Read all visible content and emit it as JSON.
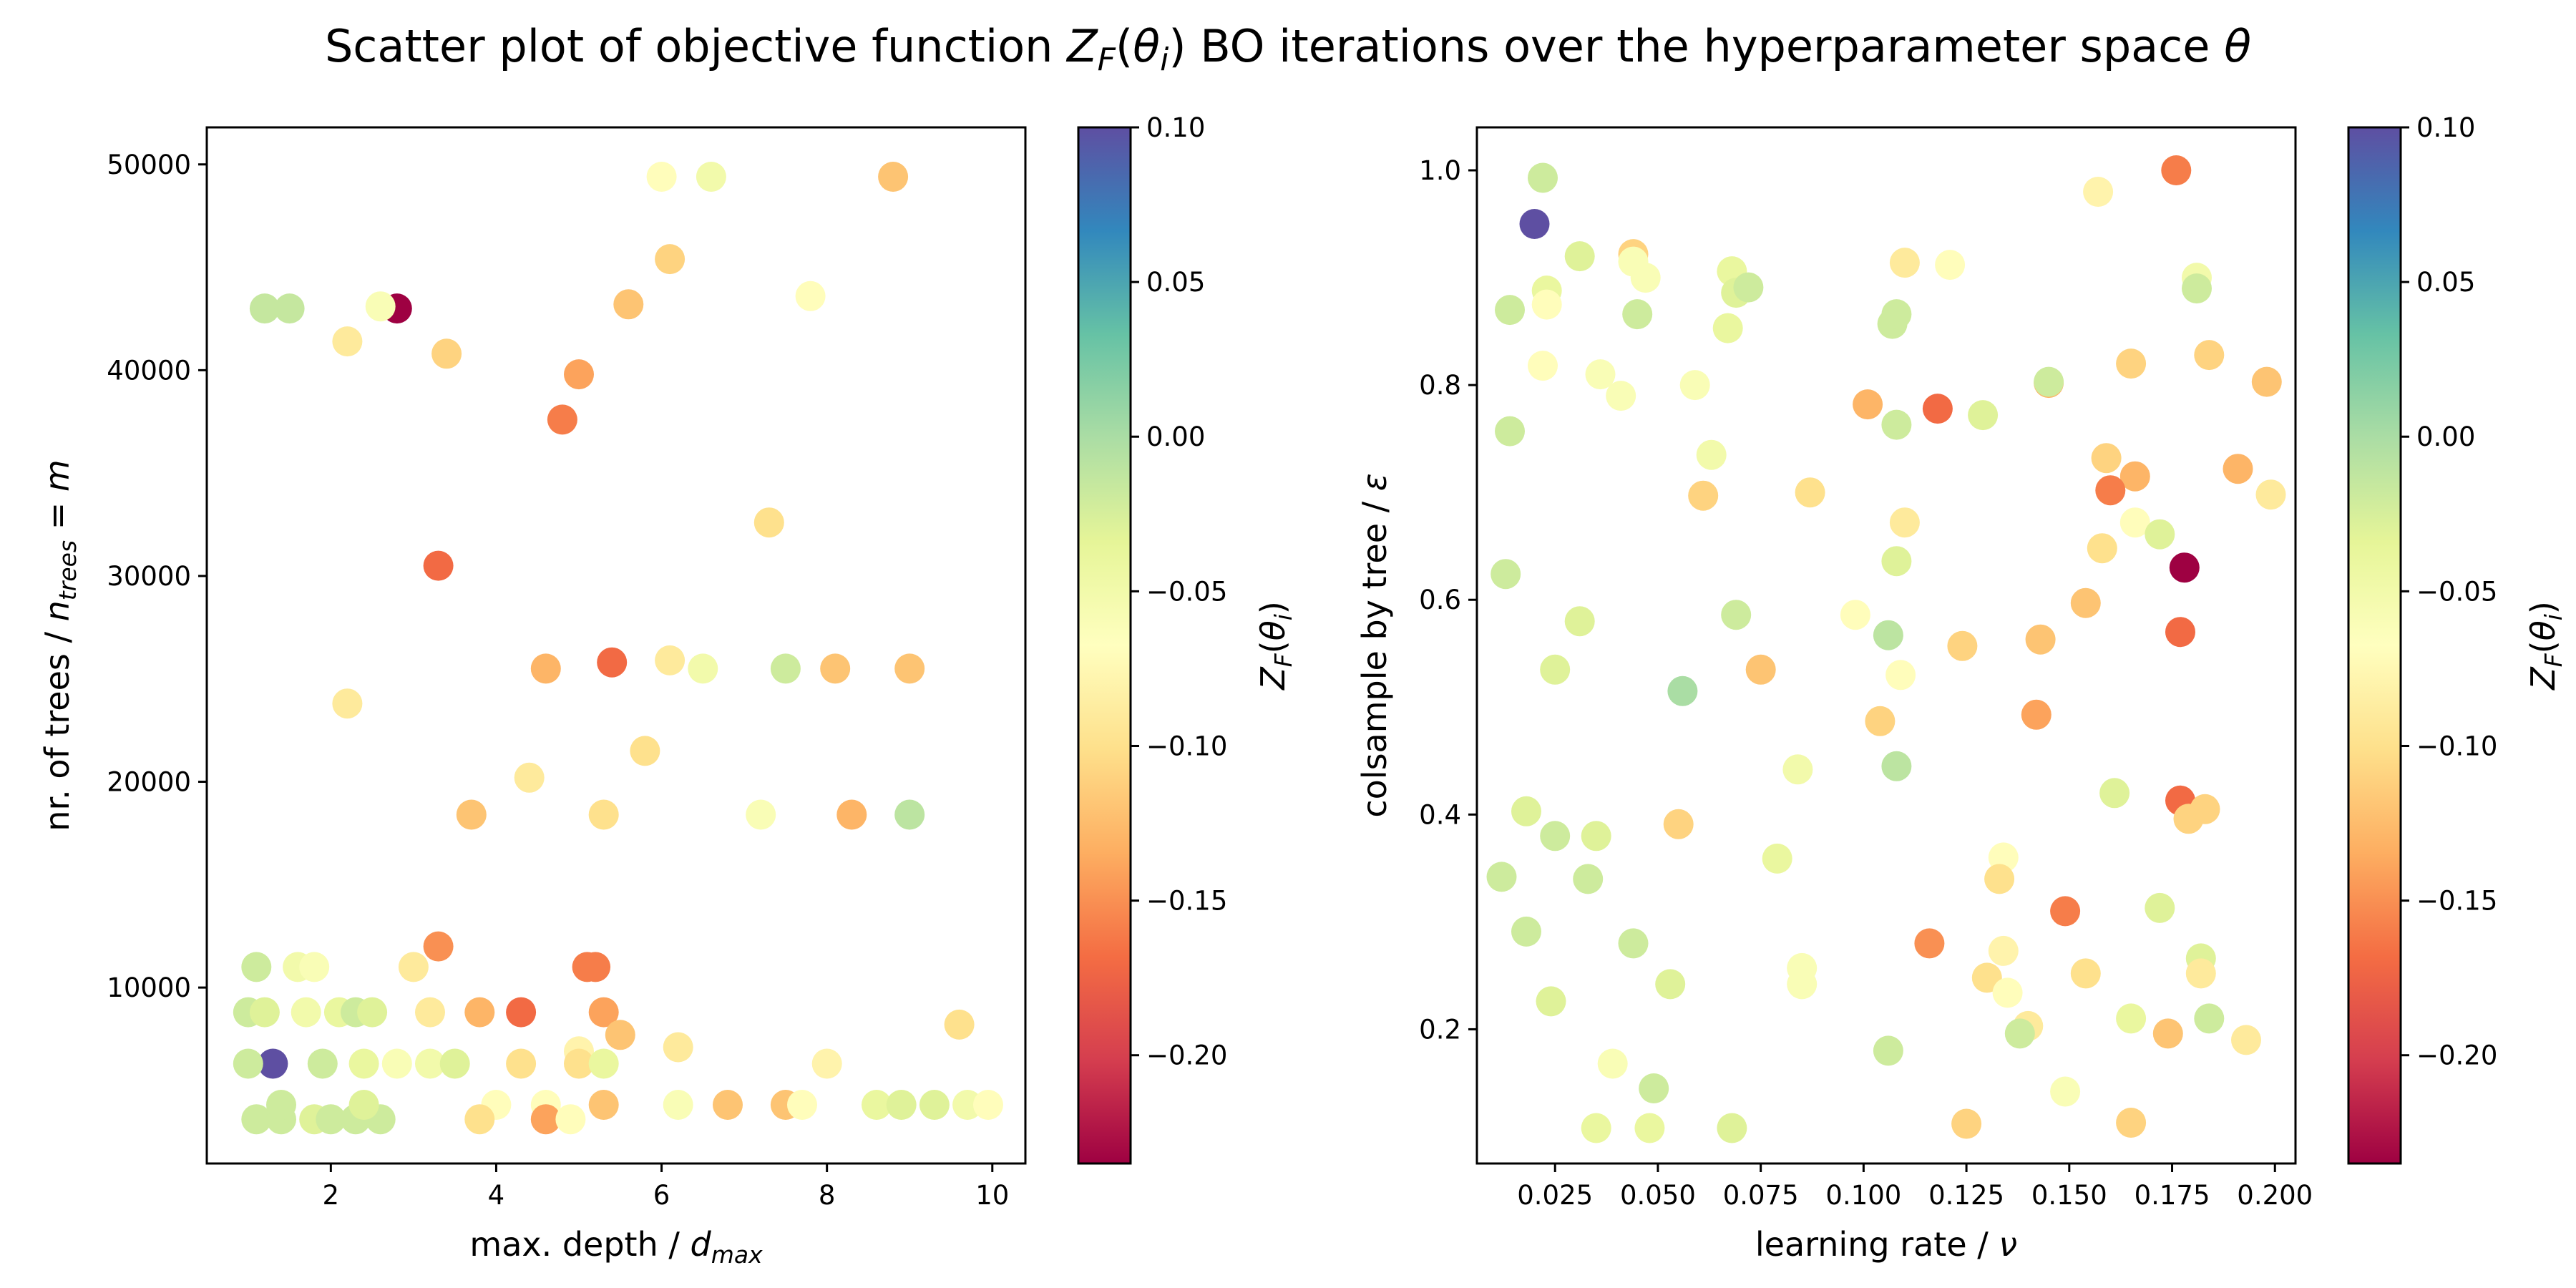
{
  "figure": {
    "title": "Scatter plot of objective function Z_F(θ_i) BO iterations over the hyperparameter space θ"
  },
  "chart_data": [
    {
      "type": "scatter",
      "xlabel": "max. depth / d_max",
      "ylabel": "nr. of trees / n_trees = m",
      "xlim": [
        0.5,
        10.4
      ],
      "ylim": [
        1450,
        51800
      ],
      "xticks": [
        2,
        4,
        6,
        8,
        10
      ],
      "yticks": [
        10000,
        20000,
        30000,
        40000,
        50000
      ],
      "colorbar": {
        "label": "Z_F(θ_i)",
        "colormap": "Spectral",
        "range": [
          -0.235,
          0.1
        ],
        "ticks": [
          "0.10",
          "0.05",
          "0.00",
          "−0.05",
          "−0.10",
          "−0.15",
          "−0.20"
        ],
        "tick_values": [
          0.1,
          0.05,
          0.0,
          -0.05,
          -0.1,
          -0.15,
          -0.2
        ]
      },
      "grid": false,
      "points": [
        {
          "x": 1.3,
          "y": 6300,
          "z": 0.1
        },
        {
          "x": 2.8,
          "y": 43000,
          "z": -0.235
        },
        {
          "x": 1.2,
          "y": 43000,
          "z": -0.015
        },
        {
          "x": 1.5,
          "y": 43000,
          "z": -0.015
        },
        {
          "x": 2.6,
          "y": 43100,
          "z": -0.06
        },
        {
          "x": 2.2,
          "y": 41400,
          "z": -0.09
        },
        {
          "x": 3.4,
          "y": 40800,
          "z": -0.11
        },
        {
          "x": 5.0,
          "y": 39800,
          "z": -0.14
        },
        {
          "x": 4.8,
          "y": 37600,
          "z": -0.16
        },
        {
          "x": 6.0,
          "y": 49400,
          "z": -0.07
        },
        {
          "x": 6.6,
          "y": 49400,
          "z": -0.05
        },
        {
          "x": 8.8,
          "y": 49400,
          "z": -0.12
        },
        {
          "x": 6.1,
          "y": 45400,
          "z": -0.11
        },
        {
          "x": 5.6,
          "y": 43200,
          "z": -0.12
        },
        {
          "x": 7.8,
          "y": 43600,
          "z": -0.07
        },
        {
          "x": 3.3,
          "y": 30500,
          "z": -0.17
        },
        {
          "x": 7.3,
          "y": 32600,
          "z": -0.1
        },
        {
          "x": 2.2,
          "y": 23800,
          "z": -0.09
        },
        {
          "x": 4.6,
          "y": 25500,
          "z": -0.13
        },
        {
          "x": 5.4,
          "y": 25800,
          "z": -0.17
        },
        {
          "x": 6.1,
          "y": 25900,
          "z": -0.09
        },
        {
          "x": 6.5,
          "y": 25500,
          "z": -0.05
        },
        {
          "x": 7.5,
          "y": 25500,
          "z": -0.02
        },
        {
          "x": 8.1,
          "y": 25500,
          "z": -0.12
        },
        {
          "x": 9.0,
          "y": 25500,
          "z": -0.12
        },
        {
          "x": 5.8,
          "y": 21500,
          "z": -0.1
        },
        {
          "x": 4.4,
          "y": 20200,
          "z": -0.09
        },
        {
          "x": 3.7,
          "y": 18400,
          "z": -0.12
        },
        {
          "x": 5.3,
          "y": 18400,
          "z": -0.1
        },
        {
          "x": 7.2,
          "y": 18400,
          "z": -0.06
        },
        {
          "x": 8.3,
          "y": 18400,
          "z": -0.13
        },
        {
          "x": 9.0,
          "y": 18400,
          "z": -0.01
        },
        {
          "x": 3.3,
          "y": 12000,
          "z": -0.15
        },
        {
          "x": 1.1,
          "y": 11000,
          "z": -0.02
        },
        {
          "x": 1.6,
          "y": 11000,
          "z": -0.05
        },
        {
          "x": 1.8,
          "y": 11000,
          "z": -0.06
        },
        {
          "x": 3.0,
          "y": 11000,
          "z": -0.09
        },
        {
          "x": 5.1,
          "y": 11000,
          "z": -0.16
        },
        {
          "x": 5.2,
          "y": 11000,
          "z": -0.16
        },
        {
          "x": 1.0,
          "y": 8800,
          "z": -0.02
        },
        {
          "x": 1.2,
          "y": 8800,
          "z": -0.03
        },
        {
          "x": 1.7,
          "y": 8800,
          "z": -0.05
        },
        {
          "x": 2.1,
          "y": 8800,
          "z": -0.04
        },
        {
          "x": 2.3,
          "y": 8800,
          "z": -0.02
        },
        {
          "x": 2.5,
          "y": 8800,
          "z": -0.03
        },
        {
          "x": 3.2,
          "y": 8800,
          "z": -0.09
        },
        {
          "x": 3.8,
          "y": 8800,
          "z": -0.13
        },
        {
          "x": 4.3,
          "y": 8800,
          "z": -0.17
        },
        {
          "x": 5.3,
          "y": 8800,
          "z": -0.14
        },
        {
          "x": 5.5,
          "y": 7700,
          "z": -0.12
        },
        {
          "x": 9.6,
          "y": 8200,
          "z": -0.1
        },
        {
          "x": 6.2,
          "y": 7100,
          "z": -0.09
        },
        {
          "x": 5.0,
          "y": 6900,
          "z": -0.08
        },
        {
          "x": 1.0,
          "y": 6300,
          "z": -0.02
        },
        {
          "x": 1.9,
          "y": 6300,
          "z": -0.02
        },
        {
          "x": 2.4,
          "y": 6300,
          "z": -0.04
        },
        {
          "x": 2.8,
          "y": 6300,
          "z": -0.06
        },
        {
          "x": 3.2,
          "y": 6300,
          "z": -0.05
        },
        {
          "x": 3.5,
          "y": 6300,
          "z": -0.03
        },
        {
          "x": 4.3,
          "y": 6300,
          "z": -0.1
        },
        {
          "x": 5.0,
          "y": 6300,
          "z": -0.1
        },
        {
          "x": 5.3,
          "y": 6300,
          "z": -0.04
        },
        {
          "x": 8.0,
          "y": 6300,
          "z": -0.08
        },
        {
          "x": 4.0,
          "y": 4300,
          "z": -0.07
        },
        {
          "x": 4.6,
          "y": 4300,
          "z": -0.07
        },
        {
          "x": 5.3,
          "y": 4300,
          "z": -0.12
        },
        {
          "x": 6.2,
          "y": 4300,
          "z": -0.06
        },
        {
          "x": 6.8,
          "y": 4300,
          "z": -0.12
        },
        {
          "x": 7.5,
          "y": 4300,
          "z": -0.12
        },
        {
          "x": 7.7,
          "y": 4300,
          "z": -0.07
        },
        {
          "x": 8.6,
          "y": 4300,
          "z": -0.04
        },
        {
          "x": 8.9,
          "y": 4300,
          "z": -0.03
        },
        {
          "x": 9.3,
          "y": 4300,
          "z": -0.03
        },
        {
          "x": 9.7,
          "y": 4300,
          "z": -0.05
        },
        {
          "x": 9.95,
          "y": 4300,
          "z": -0.07
        },
        {
          "x": 1.1,
          "y": 3600,
          "z": -0.02
        },
        {
          "x": 1.4,
          "y": 3600,
          "z": -0.02
        },
        {
          "x": 1.8,
          "y": 3600,
          "z": -0.03
        },
        {
          "x": 2.0,
          "y": 3600,
          "z": -0.02
        },
        {
          "x": 2.3,
          "y": 3600,
          "z": -0.02
        },
        {
          "x": 2.6,
          "y": 3600,
          "z": -0.02
        },
        {
          "x": 3.8,
          "y": 3600,
          "z": -0.1
        },
        {
          "x": 4.6,
          "y": 3600,
          "z": -0.14
        },
        {
          "x": 4.9,
          "y": 3600,
          "z": -0.07
        },
        {
          "x": 1.4,
          "y": 4300,
          "z": -0.02
        },
        {
          "x": 2.4,
          "y": 4300,
          "z": -0.03
        }
      ]
    },
    {
      "type": "scatter",
      "xlabel": "learning rate / ν",
      "ylabel": "colsample by tree / ε",
      "xlim": [
        0.006,
        0.205
      ],
      "ylim": [
        0.075,
        1.04
      ],
      "xticks": [
        0.025,
        0.05,
        0.075,
        0.1,
        0.125,
        0.15,
        0.175,
        0.2
      ],
      "xtick_labels": [
        "0.025",
        "0.050",
        "0.075",
        "0.100",
        "0.125",
        "0.150",
        "0.175",
        "0.200"
      ],
      "yticks": [
        0.2,
        0.4,
        0.6,
        0.8,
        1.0
      ],
      "ytick_labels": [
        "0.2",
        "0.4",
        "0.6",
        "0.8",
        "1.0"
      ],
      "colorbar": {
        "label": "Z_F(θ_i)",
        "colormap": "Spectral",
        "range": [
          -0.235,
          0.1
        ],
        "ticks": [
          "0.10",
          "0.05",
          "0.00",
          "−0.05",
          "−0.10",
          "−0.15",
          "−0.20"
        ],
        "tick_values": [
          0.1,
          0.05,
          0.0,
          -0.05,
          -0.1,
          -0.15,
          -0.2
        ]
      },
      "grid": false,
      "points": [
        {
          "x": 0.02,
          "y": 0.95,
          "z": 0.1
        },
        {
          "x": 0.178,
          "y": 0.63,
          "z": -0.235
        },
        {
          "x": 0.022,
          "y": 0.993,
          "z": -0.02
        },
        {
          "x": 0.176,
          "y": 1.0,
          "z": -0.16
        },
        {
          "x": 0.157,
          "y": 0.98,
          "z": -0.08
        },
        {
          "x": 0.023,
          "y": 0.888,
          "z": -0.04
        },
        {
          "x": 0.031,
          "y": 0.92,
          "z": -0.03
        },
        {
          "x": 0.044,
          "y": 0.922,
          "z": -0.11
        },
        {
          "x": 0.044,
          "y": 0.915,
          "z": -0.06
        },
        {
          "x": 0.047,
          "y": 0.9,
          "z": -0.06
        },
        {
          "x": 0.068,
          "y": 0.906,
          "z": -0.04
        },
        {
          "x": 0.069,
          "y": 0.886,
          "z": -0.03
        },
        {
          "x": 0.072,
          "y": 0.891,
          "z": -0.02
        },
        {
          "x": 0.11,
          "y": 0.914,
          "z": -0.09
        },
        {
          "x": 0.121,
          "y": 0.912,
          "z": -0.07
        },
        {
          "x": 0.181,
          "y": 0.9,
          "z": -0.05
        },
        {
          "x": 0.181,
          "y": 0.89,
          "z": -0.02
        },
        {
          "x": 0.014,
          "y": 0.87,
          "z": -0.02
        },
        {
          "x": 0.023,
          "y": 0.875,
          "z": -0.07
        },
        {
          "x": 0.045,
          "y": 0.866,
          "z": -0.02
        },
        {
          "x": 0.067,
          "y": 0.853,
          "z": -0.04
        },
        {
          "x": 0.107,
          "y": 0.857,
          "z": -0.02
        },
        {
          "x": 0.108,
          "y": 0.866,
          "z": -0.02
        },
        {
          "x": 0.184,
          "y": 0.828,
          "z": -0.11
        },
        {
          "x": 0.165,
          "y": 0.82,
          "z": -0.11
        },
        {
          "x": 0.022,
          "y": 0.818,
          "z": -0.07
        },
        {
          "x": 0.036,
          "y": 0.81,
          "z": -0.06
        },
        {
          "x": 0.041,
          "y": 0.79,
          "z": -0.06
        },
        {
          "x": 0.059,
          "y": 0.8,
          "z": -0.06
        },
        {
          "x": 0.145,
          "y": 0.802,
          "z": -0.13
        },
        {
          "x": 0.145,
          "y": 0.803,
          "z": -0.02
        },
        {
          "x": 0.198,
          "y": 0.803,
          "z": -0.12
        },
        {
          "x": 0.101,
          "y": 0.782,
          "z": -0.13
        },
        {
          "x": 0.118,
          "y": 0.778,
          "z": -0.17
        },
        {
          "x": 0.129,
          "y": 0.772,
          "z": -0.03
        },
        {
          "x": 0.108,
          "y": 0.763,
          "z": -0.02
        },
        {
          "x": 0.014,
          "y": 0.757,
          "z": -0.02
        },
        {
          "x": 0.063,
          "y": 0.735,
          "z": -0.05
        },
        {
          "x": 0.159,
          "y": 0.732,
          "z": -0.11
        },
        {
          "x": 0.191,
          "y": 0.722,
          "z": -0.13
        },
        {
          "x": 0.166,
          "y": 0.715,
          "z": -0.13
        },
        {
          "x": 0.16,
          "y": 0.702,
          "z": -0.16
        },
        {
          "x": 0.061,
          "y": 0.697,
          "z": -0.11
        },
        {
          "x": 0.087,
          "y": 0.7,
          "z": -0.1
        },
        {
          "x": 0.199,
          "y": 0.698,
          "z": -0.09
        },
        {
          "x": 0.11,
          "y": 0.672,
          "z": -0.09
        },
        {
          "x": 0.166,
          "y": 0.672,
          "z": -0.07
        },
        {
          "x": 0.172,
          "y": 0.661,
          "z": -0.03
        },
        {
          "x": 0.158,
          "y": 0.648,
          "z": -0.1
        },
        {
          "x": 0.108,
          "y": 0.636,
          "z": -0.03
        },
        {
          "x": 0.013,
          "y": 0.624,
          "z": -0.02
        },
        {
          "x": 0.154,
          "y": 0.597,
          "z": -0.12
        },
        {
          "x": 0.098,
          "y": 0.586,
          "z": -0.07
        },
        {
          "x": 0.069,
          "y": 0.586,
          "z": -0.02
        },
        {
          "x": 0.031,
          "y": 0.58,
          "z": -0.03
        },
        {
          "x": 0.177,
          "y": 0.57,
          "z": -0.17
        },
        {
          "x": 0.106,
          "y": 0.567,
          "z": -0.01
        },
        {
          "x": 0.143,
          "y": 0.563,
          "z": -0.12
        },
        {
          "x": 0.124,
          "y": 0.557,
          "z": -0.11
        },
        {
          "x": 0.025,
          "y": 0.535,
          "z": -0.03
        },
        {
          "x": 0.075,
          "y": 0.535,
          "z": -0.12
        },
        {
          "x": 0.109,
          "y": 0.53,
          "z": -0.07
        },
        {
          "x": 0.056,
          "y": 0.515,
          "z": 0.0
        },
        {
          "x": 0.142,
          "y": 0.493,
          "z": -0.14
        },
        {
          "x": 0.104,
          "y": 0.487,
          "z": -0.11
        },
        {
          "x": 0.108,
          "y": 0.445,
          "z": -0.01
        },
        {
          "x": 0.084,
          "y": 0.442,
          "z": -0.05
        },
        {
          "x": 0.161,
          "y": 0.42,
          "z": -0.03
        },
        {
          "x": 0.177,
          "y": 0.413,
          "z": -0.17
        },
        {
          "x": 0.183,
          "y": 0.405,
          "z": -0.11
        },
        {
          "x": 0.018,
          "y": 0.403,
          "z": -0.03
        },
        {
          "x": 0.179,
          "y": 0.396,
          "z": -0.11
        },
        {
          "x": 0.055,
          "y": 0.391,
          "z": -0.11
        },
        {
          "x": 0.025,
          "y": 0.38,
          "z": -0.02
        },
        {
          "x": 0.035,
          "y": 0.38,
          "z": -0.03
        },
        {
          "x": 0.134,
          "y": 0.36,
          "z": -0.07
        },
        {
          "x": 0.079,
          "y": 0.359,
          "z": -0.04
        },
        {
          "x": 0.012,
          "y": 0.342,
          "z": -0.02
        },
        {
          "x": 0.033,
          "y": 0.34,
          "z": -0.02
        },
        {
          "x": 0.133,
          "y": 0.34,
          "z": -0.1
        },
        {
          "x": 0.149,
          "y": 0.31,
          "z": -0.16
        },
        {
          "x": 0.172,
          "y": 0.313,
          "z": -0.03
        },
        {
          "x": 0.018,
          "y": 0.291,
          "z": -0.02
        },
        {
          "x": 0.044,
          "y": 0.28,
          "z": -0.02
        },
        {
          "x": 0.116,
          "y": 0.28,
          "z": -0.15
        },
        {
          "x": 0.134,
          "y": 0.273,
          "z": -0.08
        },
        {
          "x": 0.182,
          "y": 0.266,
          "z": -0.03
        },
        {
          "x": 0.085,
          "y": 0.257,
          "z": -0.06
        },
        {
          "x": 0.13,
          "y": 0.248,
          "z": -0.1
        },
        {
          "x": 0.154,
          "y": 0.252,
          "z": -0.1
        },
        {
          "x": 0.182,
          "y": 0.252,
          "z": -0.09
        },
        {
          "x": 0.053,
          "y": 0.242,
          "z": -0.03
        },
        {
          "x": 0.085,
          "y": 0.242,
          "z": -0.06
        },
        {
          "x": 0.135,
          "y": 0.234,
          "z": -0.07
        },
        {
          "x": 0.024,
          "y": 0.226,
          "z": -0.03
        },
        {
          "x": 0.165,
          "y": 0.21,
          "z": -0.04
        },
        {
          "x": 0.184,
          "y": 0.21,
          "z": -0.02
        },
        {
          "x": 0.14,
          "y": 0.203,
          "z": -0.09
        },
        {
          "x": 0.138,
          "y": 0.196,
          "z": -0.02
        },
        {
          "x": 0.174,
          "y": 0.196,
          "z": -0.12
        },
        {
          "x": 0.193,
          "y": 0.19,
          "z": -0.09
        },
        {
          "x": 0.106,
          "y": 0.18,
          "z": -0.02
        },
        {
          "x": 0.039,
          "y": 0.168,
          "z": -0.06
        },
        {
          "x": 0.049,
          "y": 0.145,
          "z": -0.02
        },
        {
          "x": 0.149,
          "y": 0.142,
          "z": -0.06
        },
        {
          "x": 0.125,
          "y": 0.112,
          "z": -0.11
        },
        {
          "x": 0.165,
          "y": 0.113,
          "z": -0.11
        },
        {
          "x": 0.035,
          "y": 0.108,
          "z": -0.04
        },
        {
          "x": 0.048,
          "y": 0.108,
          "z": -0.04
        },
        {
          "x": 0.068,
          "y": 0.108,
          "z": -0.03
        }
      ]
    }
  ]
}
